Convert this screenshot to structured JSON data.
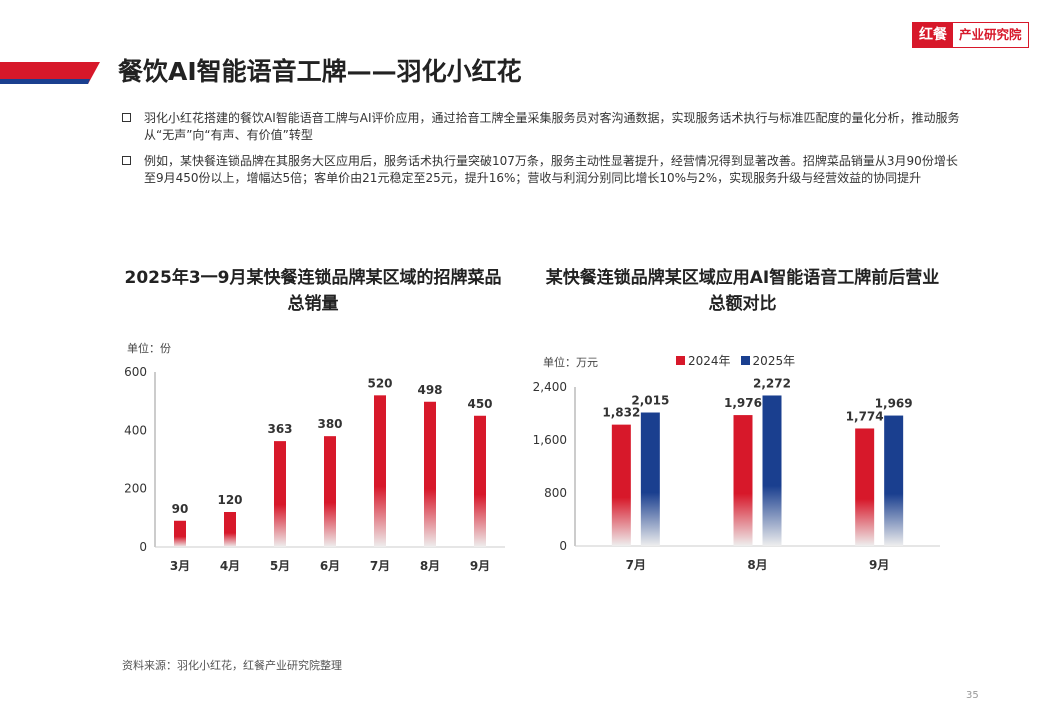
{
  "page": {
    "title": "餐饮AI智能语音工牌——羽化小红花",
    "logo_mark": "红餐",
    "logo_text": "产业研究院",
    "page_number": "35",
    "source": "资料来源：羽化小红花，红餐产业研究院整理",
    "accent_color": "#d7182a",
    "navy_color": "#1a3f8f"
  },
  "bullets": [
    "羽化小红花搭建的餐饮AI智能语音工牌与AI评价应用，通过拾音工牌全量采集服务员对客沟通数据，实现服务话术执行与标准匹配度的量化分析，推动服务从“无声”向“有声、有价值”转型",
    "例如，某快餐连锁品牌在其服务大区应用后，服务话术执行量突破107万条，服务主动性显著提升，经营情况得到显著改善。招牌菜品销量从3月90份增长至9月450份以上，增幅达5倍；客单价由21元稳定至25元，提升16%；营收与利润分别同比增长10%与2%，实现服务升级与经营效益的协同提升"
  ],
  "chart_data": [
    {
      "type": "bar",
      "title": "2025年3一9月某快餐连锁品牌某区域的招牌菜品总销量",
      "unit": "单位：份",
      "categories": [
        "3月",
        "4月",
        "5月",
        "6月",
        "7月",
        "8月",
        "9月"
      ],
      "values": [
        90,
        120,
        363,
        380,
        520,
        498,
        450
      ],
      "ylim": [
        0,
        600
      ],
      "yticks": [
        0,
        200,
        400,
        600
      ],
      "color": "#d7182a"
    },
    {
      "type": "bar",
      "title": "某快餐连锁品牌某区域应用AI智能语音工牌前后营业总额对比",
      "unit": "单位：万元",
      "categories": [
        "7月",
        "8月",
        "9月"
      ],
      "series": [
        {
          "name": "2024年",
          "values": [
            1832,
            1976,
            1774
          ],
          "color": "#d7182a"
        },
        {
          "name": "2025年",
          "values": [
            2015,
            2272,
            1969
          ],
          "color": "#1a3f8f"
        }
      ],
      "ylim": [
        0,
        2400
      ],
      "yticks": [
        0,
        800,
        1600,
        2400
      ]
    }
  ]
}
